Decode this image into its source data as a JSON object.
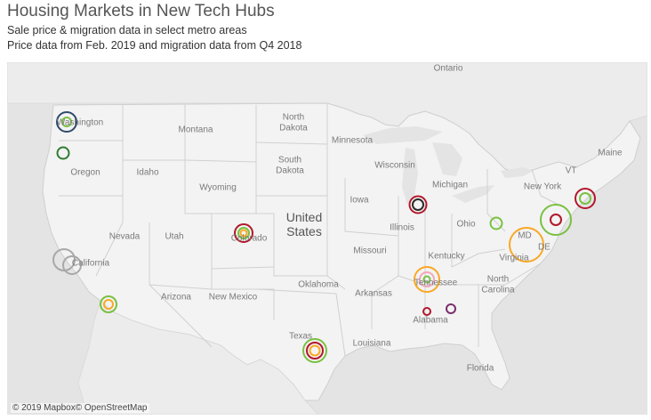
{
  "header": {
    "title": "Housing Markets in New Tech Hubs",
    "subtitle_1": "Sale price & migration data in select metro areas",
    "subtitle_2": "Price data from Feb. 2019 and migration data from Q4 2018"
  },
  "map": {
    "attribution": "© 2019 Mapbox© OpenStreetMap",
    "labels": [
      {
        "id": "ontario",
        "text": "Ontario"
      },
      {
        "id": "washington",
        "text": "Washington"
      },
      {
        "id": "montana",
        "text": "Montana"
      },
      {
        "id": "north-dakota",
        "text": "North\nDakota"
      },
      {
        "id": "minnesota",
        "text": "Minnesota"
      },
      {
        "id": "maine",
        "text": "Maine"
      },
      {
        "id": "oregon",
        "text": "Oregon"
      },
      {
        "id": "idaho",
        "text": "Idaho"
      },
      {
        "id": "south-dakota",
        "text": "South\nDakota"
      },
      {
        "id": "wisconsin",
        "text": "Wisconsin"
      },
      {
        "id": "michigan",
        "text": "Michigan"
      },
      {
        "id": "vt",
        "text": "VT"
      },
      {
        "id": "wyoming",
        "text": "Wyoming"
      },
      {
        "id": "new-york",
        "text": "New York"
      },
      {
        "id": "iowa",
        "text": "Iowa"
      },
      {
        "id": "nevada",
        "text": "Nevada"
      },
      {
        "id": "utah",
        "text": "Utah"
      },
      {
        "id": "colorado",
        "text": "Colorado"
      },
      {
        "id": "illinois",
        "text": "Illinois"
      },
      {
        "id": "ohio",
        "text": "Ohio"
      },
      {
        "id": "md",
        "text": "MD"
      },
      {
        "id": "de",
        "text": "DE"
      },
      {
        "id": "california",
        "text": "California"
      },
      {
        "id": "missouri",
        "text": "Missouri"
      },
      {
        "id": "kentucky",
        "text": "Kentucky"
      },
      {
        "id": "virginia",
        "text": "Virginia"
      },
      {
        "id": "oklahoma",
        "text": "Oklahoma"
      },
      {
        "id": "north-carolina",
        "text": "North\nCarolina"
      },
      {
        "id": "arizona",
        "text": "Arizona"
      },
      {
        "id": "new-mexico",
        "text": "New Mexico"
      },
      {
        "id": "arkansas",
        "text": "Arkansas"
      },
      {
        "id": "tennessee",
        "text": "Tennessee"
      },
      {
        "id": "alabama",
        "text": "Alabama"
      },
      {
        "id": "texas",
        "text": "Texas"
      },
      {
        "id": "louisiana",
        "text": "Louisiana"
      },
      {
        "id": "florida",
        "text": "Florida"
      }
    ],
    "country_label": "United\nStates"
  },
  "colors": {
    "land": "#f4f4f4",
    "water": "#e4e4e4",
    "border": "#d2d2d2",
    "navy": "#2e4a6b",
    "dark": "#2b2b2b",
    "green": "#7ac143",
    "darkgreen": "#2f7d32",
    "red": "#b2182b",
    "orange": "#f9a825",
    "pink": "#f4a7b9",
    "gray": "#a8a8a8",
    "purple": "#7b2d6b"
  },
  "markers": [
    {
      "metro": "seattle",
      "rings": [
        {
          "r": 11,
          "color": "navy"
        },
        {
          "r": 5,
          "color": "green"
        }
      ]
    },
    {
      "metro": "portland",
      "rings": [
        {
          "r": 6.5,
          "color": "darkgreen"
        }
      ]
    },
    {
      "metro": "san-francisco-1",
      "rings": [
        {
          "r": 12,
          "color": "gray"
        }
      ]
    },
    {
      "metro": "san-francisco-2",
      "rings": [
        {
          "r": 10,
          "color": "gray"
        }
      ]
    },
    {
      "metro": "san-diego",
      "rings": [
        {
          "r": 9,
          "color": "green"
        },
        {
          "r": 5,
          "color": "orange"
        }
      ]
    },
    {
      "metro": "denver",
      "rings": [
        {
          "r": 10,
          "color": "red"
        },
        {
          "r": 6,
          "color": "green"
        },
        {
          "r": 3.5,
          "color": "orange"
        }
      ]
    },
    {
      "metro": "austin",
      "rings": [
        {
          "r": 13,
          "color": "green"
        },
        {
          "r": 9,
          "color": "red"
        },
        {
          "r": 5.5,
          "color": "orange"
        }
      ]
    },
    {
      "metro": "chicago",
      "rings": [
        {
          "r": 9.5,
          "color": "red"
        },
        {
          "r": 6,
          "color": "dark"
        }
      ]
    },
    {
      "metro": "nashville",
      "rings": [
        {
          "r": 14,
          "color": "orange"
        },
        {
          "r": 8,
          "color": "pink"
        },
        {
          "r": 3.5,
          "color": "green"
        }
      ]
    },
    {
      "metro": "birmingham",
      "rings": [
        {
          "r": 4,
          "color": "red"
        }
      ]
    },
    {
      "metro": "atlanta",
      "rings": [
        {
          "r": 5,
          "color": "purple"
        }
      ]
    },
    {
      "metro": "pittsburgh",
      "rings": [
        {
          "r": 6.5,
          "color": "green"
        }
      ]
    },
    {
      "metro": "washington-dc",
      "rings": [
        {
          "r": 17,
          "color": "green"
        },
        {
          "r": 6,
          "color": "red"
        }
      ]
    },
    {
      "metro": "richmond",
      "rings": [
        {
          "r": 19,
          "color": "orange"
        }
      ]
    },
    {
      "metro": "boston",
      "rings": [
        {
          "r": 11,
          "color": "red"
        },
        {
          "r": 6,
          "color": "green"
        }
      ]
    }
  ]
}
